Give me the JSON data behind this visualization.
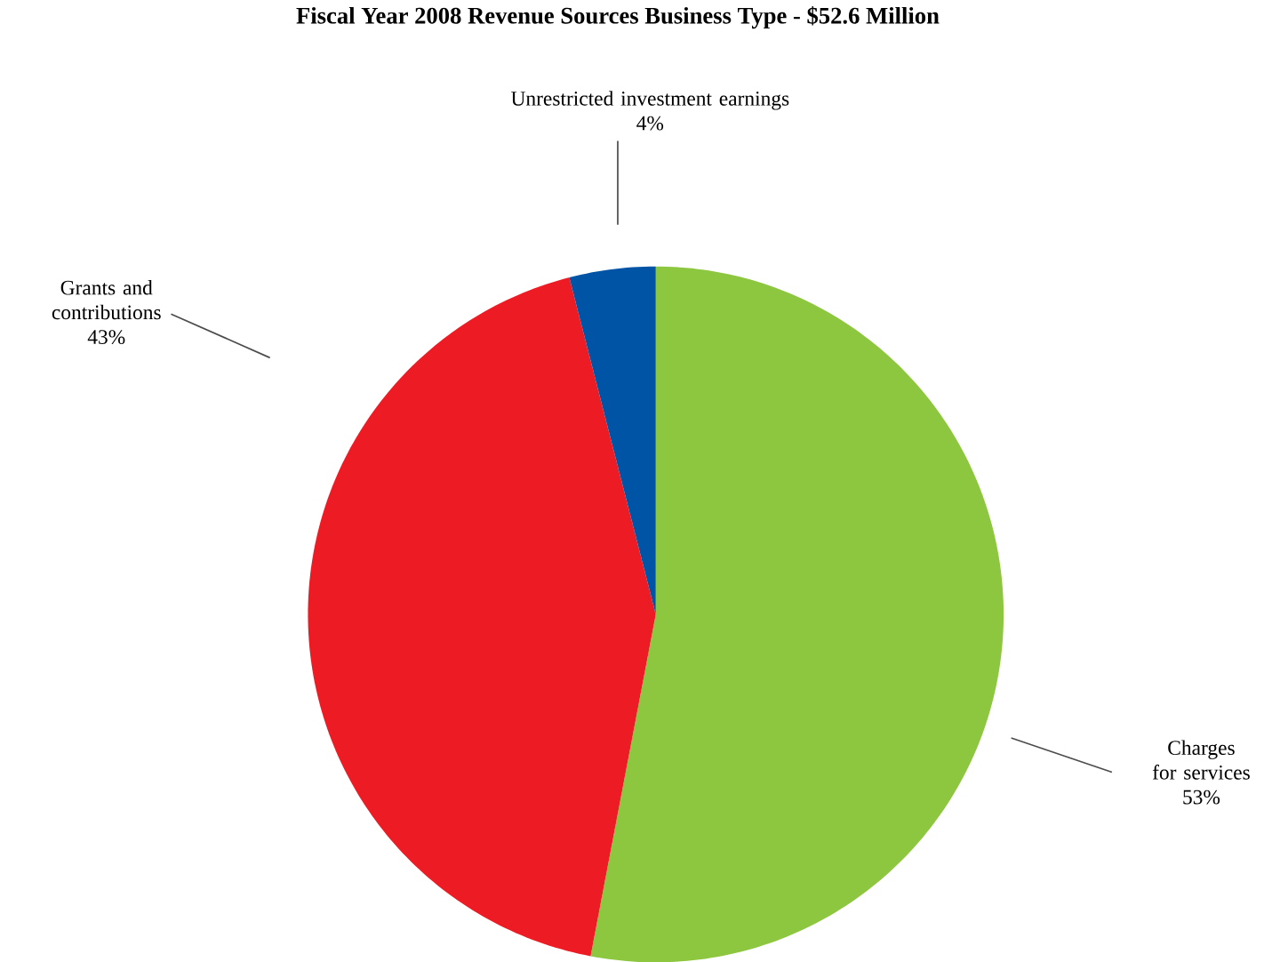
{
  "chart_data": {
    "type": "pie",
    "title": "Fiscal Year 2008 Revenue Sources Business Type - $52.6 Million",
    "categories": [
      "Charges for services",
      "Grants and contributions",
      "Unrestricted investment earnings"
    ],
    "values": [
      53,
      43,
      4
    ],
    "value_labels": [
      "53%",
      "43%",
      "4%"
    ],
    "colors": [
      "#8dc63f",
      "#ed1c24",
      "#0054a6"
    ]
  }
}
